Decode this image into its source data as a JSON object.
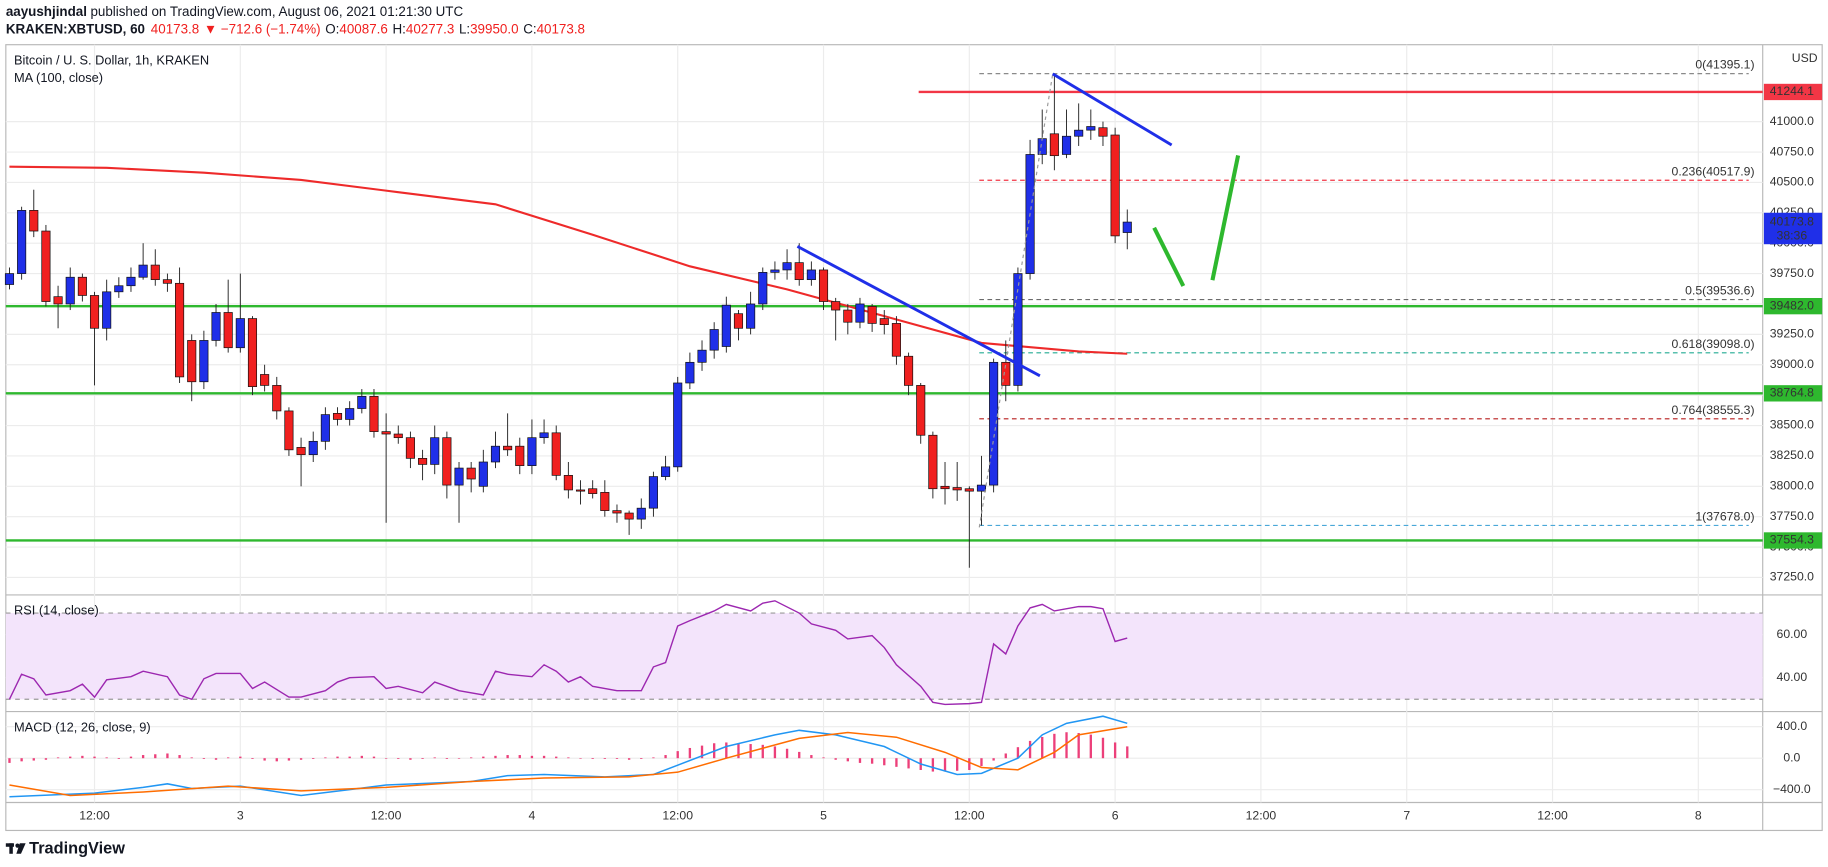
{
  "header": {
    "author": "aayushjindal",
    "published": "published on TradingView.com, August 06, 2021 01:21:30 UTC",
    "symbol": "KRAKEN:XBTUSD, 60",
    "last": "40173.8",
    "change": "▼ −712.6 (−1.74%)",
    "ohlc": [
      {
        "key": "O:",
        "value": "40087.6"
      },
      {
        "key": "H:",
        "value": "40277.3"
      },
      {
        "key": "L:",
        "value": "39950.0"
      },
      {
        "key": "C:",
        "value": "40173.8"
      }
    ]
  },
  "footer": {
    "brand": "TradingView"
  },
  "chart_data": [
    {
      "type": "candlestick",
      "title": "Bitcoin / U. S. Dollar, 1h, KRAKEN",
      "unit": "USD",
      "x": [
        5,
        6,
        7,
        8,
        9,
        10,
        11,
        12,
        13,
        14,
        15,
        16,
        17,
        18,
        19,
        20,
        21,
        22,
        23,
        24,
        25,
        26,
        27,
        28,
        29,
        30,
        31,
        32,
        33,
        34,
        35,
        36,
        37,
        38,
        39,
        40,
        41,
        42,
        43,
        44,
        45,
        46,
        47,
        48,
        49,
        50,
        51,
        52,
        53,
        54,
        55,
        56,
        57,
        58,
        59,
        60,
        61,
        62,
        63,
        64,
        65,
        66,
        67,
        68,
        69,
        70,
        71,
        72,
        73,
        74,
        75,
        76,
        77,
        78,
        79,
        80,
        81,
        82,
        83,
        84,
        85,
        86,
        87,
        88,
        89,
        90,
        91,
        92,
        93,
        94,
        95,
        96,
        97
      ],
      "open": [
        39660,
        39750,
        40270,
        40100,
        39560,
        39500,
        39720,
        39570,
        39300,
        39600,
        39650,
        39720,
        39820,
        39700,
        39670,
        39200,
        38860,
        39200,
        39430,
        39140,
        39380,
        38920,
        38830,
        38620,
        38320,
        38260,
        38370,
        38600,
        38550,
        38640,
        38740,
        38450,
        38430,
        38400,
        38230,
        38180,
        38400,
        38010,
        38150,
        38000,
        38200,
        38330,
        38330,
        38170,
        38400,
        38440,
        38090,
        37970,
        37980,
        37950,
        37800,
        37780,
        37730,
        37820,
        38080,
        38160,
        38850,
        39020,
        39120,
        39150,
        39420,
        39300,
        39500,
        39760,
        39780,
        39840,
        39700,
        39780,
        39520,
        39450,
        39350,
        39480,
        39380,
        39340,
        39070,
        38830,
        38420,
        38000,
        37990,
        37980,
        37960,
        38010,
        39020,
        38830,
        39750,
        40730,
        40900,
        40730,
        40880,
        40930,
        40950,
        40890,
        40087.6
      ],
      "high": [
        39800,
        40300,
        40440,
        40150,
        39650,
        39800,
        39750,
        39600,
        39700,
        39720,
        39800,
        40000,
        39950,
        39750,
        39800,
        39250,
        39280,
        39500,
        39700,
        39750,
        39400,
        39000,
        38900,
        38650,
        38400,
        38450,
        38650,
        38650,
        38700,
        38800,
        38800,
        38600,
        38500,
        38450,
        38300,
        38500,
        38450,
        38200,
        38200,
        38300,
        38450,
        38600,
        38400,
        38550,
        38550,
        38500,
        38200,
        38050,
        38050,
        38050,
        37850,
        37800,
        37900,
        38120,
        38250,
        38900,
        39100,
        39200,
        39350,
        39560,
        39450,
        39600,
        39800,
        39850,
        39950,
        40000,
        39850,
        39800,
        39550,
        39500,
        39550,
        39500,
        39450,
        39400,
        39100,
        38850,
        38450,
        38200,
        38200,
        38000,
        38250,
        39050,
        39200,
        39800,
        40850,
        41100,
        41395.1,
        41100,
        41150,
        41100,
        41000,
        40950,
        40277.3
      ],
      "low": [
        39620,
        39700,
        40050,
        39480,
        39300,
        39450,
        39520,
        38830,
        39200,
        39550,
        39600,
        39700,
        39650,
        39600,
        38850,
        38700,
        38800,
        39150,
        39100,
        39100,
        38750,
        38780,
        38550,
        38250,
        38000,
        38200,
        38300,
        38500,
        38500,
        38600,
        38400,
        37700,
        38350,
        38150,
        38050,
        38100,
        37900,
        37700,
        37950,
        37950,
        38150,
        38250,
        38100,
        38100,
        38350,
        38050,
        37900,
        37850,
        37900,
        37750,
        37700,
        37600,
        37650,
        37750,
        38050,
        38120,
        38800,
        38950,
        39050,
        39100,
        39200,
        39250,
        39450,
        39700,
        39700,
        39650,
        39650,
        39450,
        39200,
        39250,
        39300,
        39270,
        39250,
        39000,
        38750,
        38350,
        37900,
        37850,
        37880,
        37330,
        37678,
        37950,
        38700,
        38780,
        39700,
        40650,
        40600,
        40700,
        40800,
        40850,
        40800,
        40000,
        39950
      ],
      "close": [
        39750,
        40270,
        40100,
        39520,
        39500,
        39720,
        39570,
        39300,
        39600,
        39650,
        39720,
        39820,
        39700,
        39670,
        38900,
        38860,
        39200,
        39430,
        39140,
        39380,
        38820,
        38830,
        38620,
        38300,
        38260,
        38370,
        38590,
        38550,
        38640,
        38740,
        38450,
        38430,
        38400,
        38230,
        38180,
        38400,
        38010,
        38150,
        38060,
        38200,
        38330,
        38300,
        38170,
        38400,
        38440,
        38090,
        37970,
        37960,
        37940,
        37800,
        37780,
        37730,
        37820,
        38080,
        38160,
        38850,
        39020,
        39120,
        39290,
        39490,
        39300,
        39500,
        39760,
        39780,
        39840,
        39700,
        39780,
        39520,
        39450,
        39350,
        39500,
        39340,
        39330,
        39070,
        38830,
        38420,
        37980,
        37980,
        37970,
        37960,
        38010,
        39020,
        38830,
        39750,
        40730,
        40860,
        40720,
        40880,
        40930,
        40960,
        40880,
        40060,
        40173.8
      ],
      "colors": {
        "up": "#1f2fe8",
        "down": "#f0201f"
      },
      "overlays": [
        {
          "name": "MA (100, close)",
          "color": "#ee2a2a",
          "x": [
            5,
            13,
            21,
            29,
            37,
            45,
            53,
            61,
            69,
            77,
            85,
            93,
            97
          ],
          "values": [
            40630,
            40620,
            40580,
            40520,
            40420,
            40320,
            40070,
            39810,
            39620,
            39400,
            39180,
            39110,
            39090
          ]
        }
      ],
      "levels": [
        {
          "value": 41244.1,
          "label": "41244.1",
          "color": "#f23645"
        },
        {
          "value": 39482,
          "label": "39482.0",
          "color": "#2eb82e"
        },
        {
          "value": 38764.8,
          "label": "38764.8",
          "color": "#2eb82e"
        },
        {
          "value": 37554.3,
          "label": "37554.3",
          "color": "#2eb82e"
        }
      ],
      "fib": [
        {
          "value": 41395.1,
          "label": "0(41395.1)",
          "color": "#8a8a8a"
        },
        {
          "value": 40517.9,
          "label": "0.236(40517.9)",
          "color": "#f23645"
        },
        {
          "value": 39536.6,
          "label": "0.5(39536.6)",
          "color": "#6b6b6b"
        },
        {
          "value": 39098,
          "label": "0.618(39098.0)",
          "color": "#22ab94"
        },
        {
          "value": 38555.3,
          "label": "0.764(38555.3)",
          "color": "#b71c1c"
        },
        {
          "value": 37678,
          "label": "1(37678.0)",
          "color": "#4aa8d8"
        }
      ],
      "last_price": {
        "value": 40173.8,
        "label": "40173.8",
        "countdown": "38:36",
        "color": "#1f2fe8"
      },
      "xlim": [
        4.7,
        149.3
      ],
      "xticks": [
        {
          "value": 12,
          "label": "12:00"
        },
        {
          "value": 24,
          "label": "3"
        },
        {
          "value": 36,
          "label": "12:00"
        },
        {
          "value": 48,
          "label": "4"
        },
        {
          "value": 60,
          "label": "12:00"
        },
        {
          "value": 72,
          "label": "5"
        },
        {
          "value": 84,
          "label": "12:00"
        },
        {
          "value": 96,
          "label": "6"
        },
        {
          "value": 108,
          "label": "12:00"
        },
        {
          "value": 120,
          "label": "7"
        },
        {
          "value": 132,
          "label": "12:00"
        },
        {
          "value": 144,
          "label": "8"
        }
      ],
      "ylim": [
        37106,
        41633
      ],
      "yticks": [
        {
          "value": 41000,
          "label": "41000.0"
        },
        {
          "value": 40750,
          "label": "40750.0"
        },
        {
          "value": 40500,
          "label": "40500.0"
        },
        {
          "value": 40250,
          "label": "40250.0"
        },
        {
          "value": 40000,
          "label": "40000.0"
        },
        {
          "value": 39750,
          "label": "39750.0"
        },
        {
          "value": 39500,
          "label": "39500.0"
        },
        {
          "value": 39250,
          "label": "39250.0"
        },
        {
          "value": 39000,
          "label": "39000.0"
        },
        {
          "value": 38750,
          "label": "38750.0"
        },
        {
          "value": 38500,
          "label": "38500.0"
        },
        {
          "value": 38250,
          "label": "38250.0"
        },
        {
          "value": 38000,
          "label": "38000.0"
        },
        {
          "value": 37750,
          "label": "37750.0"
        },
        {
          "value": 37500,
          "label": "37500.0"
        },
        {
          "value": 37250,
          "label": "37250.0"
        }
      ],
      "grid": true
    },
    {
      "type": "line",
      "title": "RSI (14, close)",
      "color": "#9c27b0",
      "x": [
        5,
        6,
        7,
        8,
        10,
        11,
        12,
        13,
        15,
        16,
        18,
        19,
        20,
        21,
        22,
        24,
        25,
        26,
        28,
        29,
        31,
        32,
        33,
        35,
        36,
        37,
        39,
        40,
        42,
        44,
        45,
        46,
        48,
        49,
        50,
        51,
        52,
        53,
        55,
        57,
        58,
        59,
        60,
        61,
        63,
        64,
        66,
        67,
        68,
        70,
        71,
        73,
        74,
        76,
        77,
        78,
        80,
        81,
        82,
        84,
        85,
        86,
        87,
        88,
        89,
        90,
        91,
        93,
        94,
        95,
        96,
        97
      ],
      "values": [
        30,
        41.6,
        39.5,
        32,
        34,
        37,
        31,
        39,
        40.5,
        43,
        40.5,
        32,
        30,
        39.5,
        42,
        42,
        35,
        38,
        31,
        31,
        34,
        38,
        40,
        40.5,
        35,
        36,
        33,
        38,
        34,
        32,
        43,
        41.6,
        40.5,
        46,
        43,
        38,
        40.5,
        36,
        34,
        34,
        45,
        47,
        64,
        66.5,
        71,
        74,
        71,
        74.6,
        75.7,
        70,
        65,
        62,
        58,
        59.5,
        54,
        46,
        36,
        28.6,
        27.6,
        28,
        28.6,
        55.7,
        51,
        64,
        72.4,
        74,
        71,
        73,
        73,
        72,
        56.8,
        58.4
      ],
      "bands": [
        30,
        70
      ],
      "band_color": "#f3e4fb",
      "ylim": [
        24.3,
        78.4
      ],
      "yticks": [
        {
          "value": 60,
          "label": "60.00"
        },
        {
          "value": 40,
          "label": "40.00"
        }
      ]
    },
    {
      "type": "combo",
      "title": "MACD (12, 26, close, 9)",
      "histogram": {
        "color": "#ec407a",
        "values": [
          -60,
          -40,
          -30,
          -20,
          10,
          20,
          30,
          20,
          10,
          -10,
          20,
          40,
          50,
          60,
          40,
          10,
          -10,
          -20,
          10,
          20,
          -10,
          -30,
          -40,
          -30,
          -20,
          -10,
          10,
          20,
          20,
          30,
          20,
          0,
          -10,
          -20,
          -10,
          10,
          -10,
          0,
          10,
          20,
          30,
          40,
          40,
          30,
          30,
          20,
          10,
          0,
          -10,
          -10,
          -10,
          -20,
          -10,
          10,
          40,
          90,
          130,
          160,
          190,
          200,
          190,
          180,
          170,
          150,
          120,
          80,
          40,
          10,
          -20,
          -40,
          -60,
          -70,
          -90,
          -110,
          -130,
          -150,
          -170,
          -170,
          -160,
          -150,
          -100,
          -30,
          60,
          140,
          220,
          270,
          310,
          330,
          320,
          300,
          260,
          200,
          150
        ]
      },
      "series": [
        {
          "color": "#2196f3",
          "x": [
            5,
            12,
            16,
            18,
            20,
            24,
            29,
            33,
            36,
            43,
            46,
            49,
            54,
            58,
            60,
            64,
            68,
            70,
            73,
            77,
            80,
            83,
            85,
            88,
            90,
            92,
            95,
            97
          ],
          "values": [
            -490,
            -444,
            -370,
            -326,
            -385,
            -356,
            -474,
            -400,
            -340,
            -296,
            -222,
            -207,
            -237,
            -207,
            -89,
            148,
            296,
            355,
            296,
            148,
            -74,
            -207,
            -193,
            0,
            296,
            444,
            533,
            444
          ]
        },
        {
          "color": "#ff6d00",
          "x": [
            5,
            10,
            16,
            23,
            29,
            36,
            43,
            49,
            56,
            60,
            64,
            70,
            74,
            78,
            82,
            85,
            88,
            91,
            93,
            97
          ],
          "values": [
            -340,
            -474,
            -430,
            -356,
            -415,
            -370,
            -296,
            -252,
            -237,
            -178,
            0,
            252,
            326,
            267,
            74,
            -119,
            -148,
            74,
            296,
            400
          ]
        }
      ],
      "ylim": [
        -563,
        593
      ],
      "yticks": [
        {
          "value": 400,
          "label": "400.0"
        },
        {
          "value": 0,
          "label": "0.0"
        },
        {
          "value": -400,
          "label": "−400.0"
        }
      ]
    }
  ]
}
